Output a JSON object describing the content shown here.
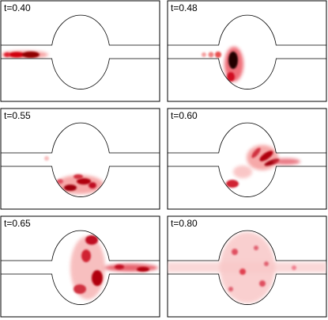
{
  "panels": [
    {
      "label": "t=0.40"
    },
    {
      "label": "t=0.48"
    },
    {
      "label": "t=0.55"
    },
    {
      "label": "t=0.60"
    },
    {
      "label": "t=0.65"
    },
    {
      "label": "t=0.80"
    }
  ]
}
